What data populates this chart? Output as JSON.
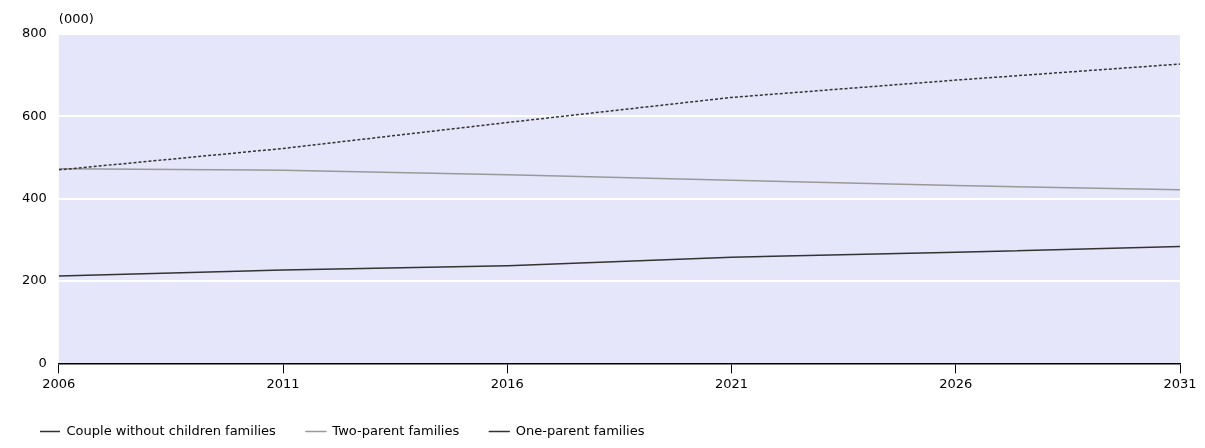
{
  "chart_data": {
    "type": "line",
    "ylabel": "(000)",
    "x": [
      2006,
      2011,
      2016,
      2021,
      2026,
      2031
    ],
    "series": [
      {
        "name": "Couple without children families",
        "color": "#333333",
        "line_style": "dotted",
        "values": [
          470,
          522,
          585,
          646,
          688,
          727
        ]
      },
      {
        "name": "Two-parent families",
        "color": "#999999",
        "values": [
          473,
          469,
          458,
          445,
          432,
          422
        ]
      },
      {
        "name": "One-parent families",
        "color": "#333333",
        "values": [
          212,
          227,
          237,
          258,
          270,
          284
        ]
      }
    ],
    "xlim": [
      2006,
      2031
    ],
    "xticks": [
      2006,
      2011,
      2016,
      2021,
      2026,
      2031
    ],
    "ylim": [
      0,
      800
    ],
    "yticks": [
      0,
      200,
      400,
      600,
      800
    ],
    "grid": "y",
    "legend": "bottom left",
    "marker": "none"
  }
}
